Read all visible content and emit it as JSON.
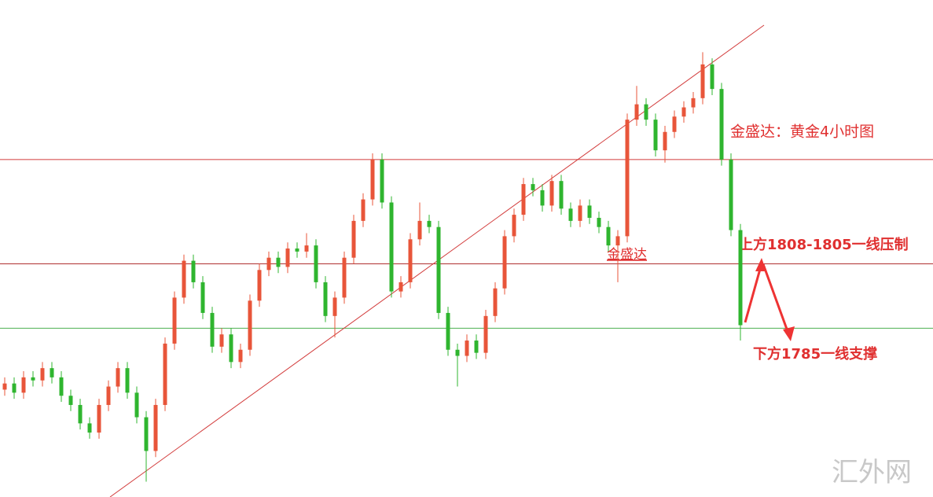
{
  "chart_data": {
    "type": "candlestick",
    "title": "金盛达：黄金4小时图",
    "ylim": [
      1730,
      1892
    ],
    "up_color": "#e8553a",
    "down_color": "#2fb52f",
    "open": [
      1765,
      1767,
      1764,
      1769,
      1768,
      1772,
      1769,
      1763,
      1760,
      1754,
      1751,
      1760,
      1766,
      1772,
      1764,
      1756,
      1745,
      1760,
      1780,
      1795,
      1807,
      1800,
      1790,
      1779,
      1783,
      1774,
      1778,
      1794,
      1804,
      1808,
      1805,
      1811,
      1810,
      1812,
      1800,
      1789,
      1795,
      1808,
      1820,
      1827,
      1840,
      1826,
      1797,
      1800,
      1814,
      1820,
      1818,
      1790,
      1778,
      1776,
      1781,
      1777,
      1789,
      1798,
      1815,
      1822,
      1832,
      1830,
      1825,
      1833,
      1824,
      1820,
      1825,
      1821,
      1818,
      1812,
      1815,
      1853,
      1858,
      1853,
      1843,
      1849,
      1854,
      1857,
      1860,
      1871,
      1863,
      1840,
      1817
    ],
    "high": [
      1769,
      1769,
      1771,
      1771,
      1774,
      1774,
      1771,
      1765,
      1762,
      1756,
      1762,
      1768,
      1774,
      1774,
      1766,
      1758,
      1762,
      1782,
      1797,
      1809,
      1809,
      1802,
      1792,
      1785,
      1785,
      1780,
      1796,
      1806,
      1810,
      1810,
      1813,
      1813,
      1816,
      1814,
      1802,
      1797,
      1810,
      1822,
      1829,
      1842,
      1842,
      1828,
      1802,
      1816,
      1826,
      1822,
      1820,
      1792,
      1780,
      1783,
      1783,
      1791,
      1800,
      1817,
      1824,
      1834,
      1834,
      1832,
      1835,
      1835,
      1826,
      1827,
      1827,
      1823,
      1820,
      1817,
      1855,
      1864,
      1860,
      1855,
      1851,
      1856,
      1859,
      1862,
      1875,
      1873,
      1865,
      1842,
      1819
    ],
    "low": [
      1763,
      1762,
      1762,
      1766,
      1766,
      1767,
      1761,
      1758,
      1752,
      1749,
      1749,
      1758,
      1764,
      1762,
      1754,
      1735,
      1743,
      1758,
      1778,
      1793,
      1798,
      1788,
      1777,
      1777,
      1772,
      1772,
      1776,
      1792,
      1802,
      1803,
      1803,
      1808,
      1808,
      1798,
      1787,
      1782,
      1793,
      1806,
      1818,
      1825,
      1824,
      1795,
      1795,
      1798,
      1812,
      1816,
      1788,
      1776,
      1766,
      1774,
      1775,
      1775,
      1787,
      1796,
      1813,
      1820,
      1828,
      1823,
      1823,
      1822,
      1818,
      1818,
      1819,
      1816,
      1810,
      1800,
      1813,
      1851,
      1851,
      1841,
      1839,
      1847,
      1852,
      1855,
      1858,
      1861,
      1838,
      1815,
      1781
    ],
    "close": [
      1767,
      1764,
      1769,
      1768,
      1772,
      1769,
      1763,
      1760,
      1754,
      1751,
      1760,
      1766,
      1772,
      1764,
      1756,
      1745,
      1760,
      1780,
      1795,
      1807,
      1800,
      1790,
      1779,
      1783,
      1774,
      1778,
      1794,
      1804,
      1808,
      1805,
      1811,
      1810,
      1812,
      1800,
      1789,
      1795,
      1808,
      1820,
      1827,
      1840,
      1826,
      1797,
      1800,
      1814,
      1820,
      1818,
      1790,
      1778,
      1776,
      1781,
      1777,
      1789,
      1798,
      1815,
      1822,
      1832,
      1830,
      1825,
      1833,
      1824,
      1820,
      1825,
      1821,
      1818,
      1812,
      1815,
      1853,
      1858,
      1853,
      1843,
      1849,
      1854,
      1857,
      1860,
      1871,
      1863,
      1840,
      1817,
      1786
    ],
    "hlines": [
      {
        "value": 1840,
        "color": "#d23a3a"
      },
      {
        "value": 1806,
        "color": "#b03030"
      },
      {
        "value": 1785,
        "color": "#4caf50"
      }
    ],
    "annotations": [
      "金盛达",
      "上方1808-1805一线压制",
      "下方1785一线支撑"
    ],
    "watermark": "汇外网"
  }
}
